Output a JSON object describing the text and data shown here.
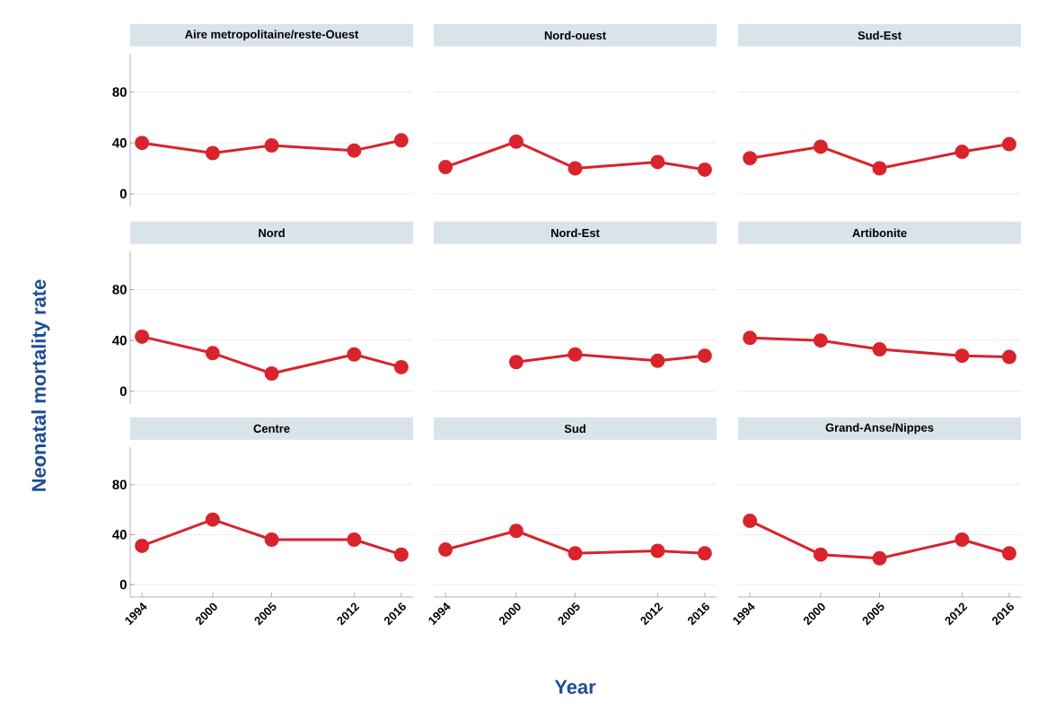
{
  "chart_data": [
    {
      "type": "line",
      "title": "Aire metropolitaine/reste-Ouest",
      "x": [
        1994,
        2000,
        2005,
        2012,
        2016
      ],
      "values": [
        40,
        32,
        38,
        34,
        42
      ],
      "color": "#d9232d",
      "marker": "circle",
      "grid": "y",
      "xlim": [
        1993,
        2017
      ],
      "xticks": [
        1994,
        2000,
        2005,
        2012,
        2016
      ],
      "ylim": [
        -10,
        110
      ],
      "yticks": [
        0,
        40,
        80
      ],
      "tick_labels": "y"
    },
    {
      "type": "line",
      "title": "Nord-ouest",
      "x": [
        1994,
        2000,
        2005,
        2012,
        2016
      ],
      "values": [
        21,
        41,
        20,
        25,
        19
      ],
      "color": "#d9232d",
      "marker": "circle",
      "grid": "y",
      "xlim": [
        1993,
        2017
      ],
      "xticks": [
        1994,
        2000,
        2005,
        2012,
        2016
      ],
      "yticks": [
        0,
        40,
        80
      ],
      "tick_labels": false
    },
    {
      "type": "line",
      "title": "Sud-Est",
      "x": [
        1994,
        2000,
        2005,
        2012,
        2016
      ],
      "values": [
        28,
        37,
        20,
        33,
        39
      ],
      "color": "#d9232d",
      "marker": "circle",
      "grid": "y",
      "xlim": [
        1993,
        2017
      ],
      "xticks": [
        1994,
        2000,
        2005,
        2012,
        2016
      ],
      "yticks": [
        0,
        40,
        80
      ],
      "tick_labels": false
    },
    {
      "type": "line",
      "title": "Nord",
      "ylabel": "Neonatal mortality rate",
      "x": [
        1994,
        2000,
        2005,
        2012,
        2016
      ],
      "values": [
        43,
        30,
        14,
        29,
        19
      ],
      "color": "#d9232d",
      "marker": "circle",
      "grid": "y",
      "xlim": [
        1993,
        2017
      ],
      "xticks": [
        1994,
        2000,
        2005,
        2012,
        2016
      ],
      "ylim": [
        -10,
        110
      ],
      "yticks": [
        0,
        40,
        80
      ],
      "tick_labels": "y"
    },
    {
      "type": "line",
      "title": "Nord-Est",
      "x": [
        2000,
        2005,
        2012,
        2016
      ],
      "values": [
        23,
        29,
        24,
        28
      ],
      "color": "#d9232d",
      "marker": "circle",
      "grid": "y",
      "xlim": [
        1993,
        2017
      ],
      "xticks": [
        1994,
        2000,
        2005,
        2012,
        2016
      ],
      "yticks": [
        0,
        40,
        80
      ],
      "tick_labels": false
    },
    {
      "type": "line",
      "title": "Artibonite",
      "x": [
        1994,
        2000,
        2005,
        2012,
        2016
      ],
      "values": [
        42,
        40,
        33,
        28,
        27
      ],
      "color": "#d9232d",
      "marker": "circle",
      "grid": "y",
      "xlim": [
        1993,
        2017
      ],
      "xticks": [
        1994,
        2000,
        2005,
        2012,
        2016
      ],
      "yticks": [
        0,
        40,
        80
      ],
      "tick_labels": false
    },
    {
      "type": "line",
      "title": "Centre",
      "x": [
        1994,
        2000,
        2005,
        2012,
        2016
      ],
      "values": [
        31,
        52,
        36,
        36,
        24
      ],
      "color": "#d9232d",
      "marker": "circle",
      "grid": "y",
      "xlim": [
        1993,
        2017
      ],
      "xticks": [
        1994,
        2000,
        2005,
        2012,
        2016
      ],
      "ylim": [
        -10,
        110
      ],
      "yticks": [
        0,
        40,
        80
      ]
    },
    {
      "type": "line",
      "title": "Sud",
      "xlabel": "Year",
      "x": [
        1994,
        2000,
        2005,
        2012,
        2016
      ],
      "values": [
        28,
        43,
        25,
        27,
        25
      ],
      "color": "#d9232d",
      "marker": "circle",
      "grid": "y",
      "xlim": [
        1993,
        2017
      ],
      "xticks": [
        1994,
        2000,
        2005,
        2012,
        2016
      ],
      "yticks": [
        0,
        40,
        80
      ],
      "tick_labels": "x"
    },
    {
      "type": "line",
      "title": "Grand-Anse/Nippes",
      "x": [
        1994,
        2000,
        2005,
        2012,
        2016
      ],
      "values": [
        51,
        24,
        21,
        36,
        25
      ],
      "color": "#d9232d",
      "marker": "circle",
      "grid": "y",
      "xlim": [
        1993,
        2017
      ],
      "xticks": [
        1994,
        2000,
        2005,
        2012,
        2016
      ],
      "yticks": [
        0,
        40,
        80
      ],
      "tick_labels": "x"
    }
  ]
}
